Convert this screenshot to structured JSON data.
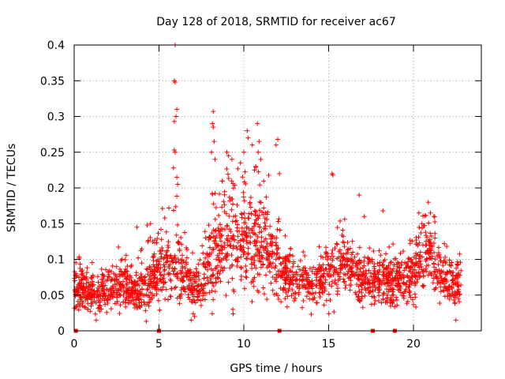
{
  "chart_data": {
    "type": "scatter",
    "title": "Day 128 of 2018, SRMTID for receiver ac67",
    "xlabel": "GPS time / hours",
    "ylabel": "SRMTID / TECUs",
    "xlim": [
      0,
      24
    ],
    "ylim": [
      0,
      0.4
    ],
    "x_ticks": [
      0,
      5,
      10,
      15,
      20
    ],
    "x_tick_labels": [
      "0",
      "5",
      "10",
      "15",
      "20"
    ],
    "y_ticks": [
      0,
      0.05,
      0.1,
      0.15,
      0.2,
      0.25,
      0.3,
      0.35,
      0.4
    ],
    "y_tick_labels": [
      "0",
      "0.05",
      "0.1",
      "0.15",
      "0.2",
      "0.25",
      "0.3",
      "0.35",
      "0.4"
    ],
    "grid": true,
    "marker": "+",
    "color": "#ff0000",
    "gap_markers_x": [
      0.1,
      5.0,
      12.1,
      17.6,
      18.9
    ],
    "envelope": {
      "x": [
        0,
        0.5,
        1,
        1.5,
        2,
        2.5,
        3,
        3.5,
        4,
        4.5,
        5,
        5.5,
        6,
        6.5,
        7,
        7.5,
        8,
        8.5,
        9,
        9.5,
        10,
        10.5,
        11,
        11.5,
        12,
        12.5,
        13,
        13.5,
        14,
        14.5,
        15,
        15.5,
        16,
        16.5,
        17,
        17.5,
        18,
        18.5,
        19,
        19.5,
        20,
        20.5,
        21,
        21.5,
        22,
        22.5,
        22.8
      ],
      "center": [
        0.06,
        0.058,
        0.052,
        0.055,
        0.06,
        0.062,
        0.065,
        0.06,
        0.058,
        0.065,
        0.085,
        0.095,
        0.1,
        0.08,
        0.065,
        0.06,
        0.1,
        0.12,
        0.125,
        0.13,
        0.13,
        0.125,
        0.12,
        0.115,
        0.095,
        0.075,
        0.07,
        0.068,
        0.065,
        0.07,
        0.085,
        0.09,
        0.09,
        0.08,
        0.075,
        0.07,
        0.07,
        0.068,
        0.065,
        0.072,
        0.085,
        0.1,
        0.11,
        0.08,
        0.07,
        0.065,
        0.065
      ],
      "spread": [
        0.025,
        0.025,
        0.025,
        0.025,
        0.025,
        0.03,
        0.03,
        0.025,
        0.03,
        0.035,
        0.04,
        0.05,
        0.06,
        0.035,
        0.03,
        0.03,
        0.05,
        0.055,
        0.06,
        0.06,
        0.06,
        0.06,
        0.06,
        0.055,
        0.045,
        0.03,
        0.025,
        0.025,
        0.025,
        0.03,
        0.04,
        0.04,
        0.04,
        0.035,
        0.035,
        0.03,
        0.03,
        0.03,
        0.03,
        0.03,
        0.04,
        0.045,
        0.045,
        0.03,
        0.03,
        0.025,
        0.025
      ]
    },
    "points": [
      [
        5.95,
        0.4
      ],
      [
        5.9,
        0.35
      ],
      [
        5.95,
        0.348
      ],
      [
        6.05,
        0.31
      ],
      [
        6.0,
        0.3
      ],
      [
        5.9,
        0.293
      ],
      [
        5.9,
        0.253
      ],
      [
        5.95,
        0.25
      ],
      [
        5.85,
        0.228
      ],
      [
        6.05,
        0.215
      ],
      [
        6.1,
        0.205
      ],
      [
        8.2,
        0.307
      ],
      [
        8.15,
        0.29
      ],
      [
        8.2,
        0.285
      ],
      [
        8.25,
        0.265
      ],
      [
        8.1,
        0.25
      ],
      [
        8.3,
        0.24
      ],
      [
        9.0,
        0.25
      ],
      [
        9.1,
        0.245
      ],
      [
        9.3,
        0.24
      ],
      [
        9.8,
        0.235
      ],
      [
        10.0,
        0.25
      ],
      [
        10.2,
        0.28
      ],
      [
        10.25,
        0.27
      ],
      [
        10.5,
        0.26
      ],
      [
        10.8,
        0.29
      ],
      [
        10.9,
        0.265
      ],
      [
        10.85,
        0.25
      ],
      [
        11.0,
        0.24
      ],
      [
        10.7,
        0.23
      ],
      [
        11.9,
        0.26
      ],
      [
        12.0,
        0.268
      ],
      [
        12.1,
        0.22
      ],
      [
        15.2,
        0.22
      ],
      [
        15.25,
        0.218
      ],
      [
        16.8,
        0.19
      ],
      [
        17.1,
        0.16
      ],
      [
        18.2,
        0.168
      ],
      [
        20.5,
        0.15
      ],
      [
        20.6,
        0.147
      ],
      [
        21.0,
        0.165
      ],
      [
        21.2,
        0.16
      ],
      [
        4.3,
        0.148
      ],
      [
        4.5,
        0.15
      ],
      [
        3.7,
        0.145
      ],
      [
        22.5,
        0.015
      ],
      [
        6.9,
        0.015
      ],
      [
        7.1,
        0.02
      ],
      [
        1.3,
        0.015
      ],
      [
        9.35,
        0.03
      ]
    ]
  }
}
